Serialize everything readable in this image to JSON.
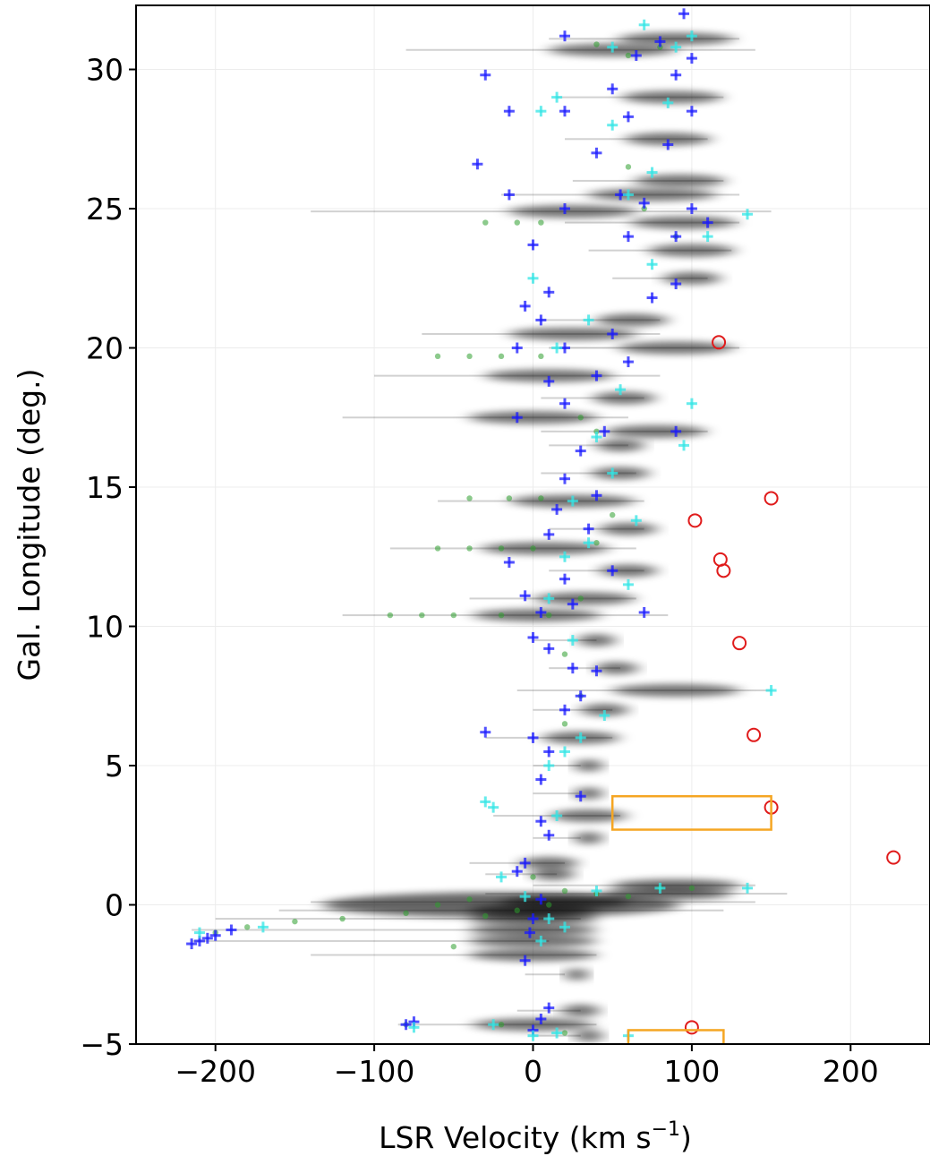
{
  "chart_data": {
    "type": "scatter",
    "title": "",
    "xlabel": "LSR Velocity (km s",
    "xlabel_sup": "−1",
    "xlabel_end": ")",
    "ylabel": "Gal. Longitude (deg.)",
    "xlim": [
      -250,
      250
    ],
    "ylim": [
      -5,
      32.3
    ],
    "x_ticks": [
      -200,
      -100,
      0,
      100,
      200
    ],
    "x_tick_labels": [
      "−200",
      "−100",
      "0",
      "100",
      "200"
    ],
    "y_ticks": [
      -5,
      0,
      5,
      10,
      15,
      20,
      25,
      30
    ],
    "y_tick_labels": [
      "−5",
      "0",
      "5",
      "10",
      "15",
      "20",
      "25",
      "30"
    ],
    "grid": true,
    "colors": {
      "emission": "#000000",
      "green_points": "#2e9e2e",
      "blue_cross": "#1a1aff",
      "cyan_cross": "#33e6e6",
      "red_circle": "#e01b1b",
      "orange_box": "#f5a623"
    },
    "emission_ridges": [
      {
        "l": 31.1,
        "v0": 10,
        "v1": 130
      },
      {
        "l": 30.7,
        "v0": -80,
        "v1": 140
      },
      {
        "l": 29.0,
        "v0": 15,
        "v1": 120
      },
      {
        "l": 27.5,
        "v0": 20,
        "v1": 110
      },
      {
        "l": 26.0,
        "v0": 25,
        "v1": 120
      },
      {
        "l": 25.5,
        "v0": -20,
        "v1": 130
      },
      {
        "l": 24.9,
        "v0": -140,
        "v1": 150
      },
      {
        "l": 24.5,
        "v0": 20,
        "v1": 130
      },
      {
        "l": 23.5,
        "v0": 35,
        "v1": 125
      },
      {
        "l": 22.5,
        "v0": 50,
        "v1": 110
      },
      {
        "l": 21.0,
        "v0": 5,
        "v1": 80
      },
      {
        "l": 20.5,
        "v0": -70,
        "v1": 80
      },
      {
        "l": 20.0,
        "v0": 10,
        "v1": 130
      },
      {
        "l": 19.0,
        "v0": -100,
        "v1": 80
      },
      {
        "l": 18.2,
        "v0": 5,
        "v1": 70
      },
      {
        "l": 17.5,
        "v0": -120,
        "v1": 60
      },
      {
        "l": 17.0,
        "v0": 5,
        "v1": 110
      },
      {
        "l": 16.5,
        "v0": 10,
        "v1": 60
      },
      {
        "l": 15.5,
        "v0": 5,
        "v1": 65
      },
      {
        "l": 14.5,
        "v0": -60,
        "v1": 70
      },
      {
        "l": 13.5,
        "v0": 10,
        "v1": 70
      },
      {
        "l": 12.8,
        "v0": -90,
        "v1": 65
      },
      {
        "l": 12.0,
        "v0": 10,
        "v1": 70
      },
      {
        "l": 11.0,
        "v0": -40,
        "v1": 65
      },
      {
        "l": 10.4,
        "v0": -120,
        "v1": 85
      },
      {
        "l": 9.5,
        "v0": 0,
        "v1": 40
      },
      {
        "l": 8.5,
        "v0": 10,
        "v1": 55
      },
      {
        "l": 7.7,
        "v0": -10,
        "v1": 150
      },
      {
        "l": 7.0,
        "v0": 0,
        "v1": 50
      },
      {
        "l": 6.0,
        "v0": -30,
        "v1": 50
      },
      {
        "l": 5.0,
        "v0": 0,
        "v1": 30
      },
      {
        "l": 4.0,
        "v0": 0,
        "v1": 30
      },
      {
        "l": 3.2,
        "v0": -25,
        "v1": 55
      },
      {
        "l": 2.4,
        "v0": 0,
        "v1": 30
      },
      {
        "l": 1.5,
        "v0": -40,
        "v1": 20
      },
      {
        "l": 1.1,
        "v0": -30,
        "v1": 15
      },
      {
        "l": 0.7,
        "v0": 0,
        "v1": 140
      },
      {
        "l": 0.4,
        "v0": -30,
        "v1": 160
      },
      {
        "l": 0.1,
        "v0": -140,
        "v1": 140
      },
      {
        "l": -0.2,
        "v0": -160,
        "v1": 120
      },
      {
        "l": -0.5,
        "v0": -200,
        "v1": 30
      },
      {
        "l": -0.9,
        "v0": -215,
        "v1": 20
      },
      {
        "l": -1.3,
        "v0": -215,
        "v1": 10
      },
      {
        "l": -1.8,
        "v0": -140,
        "v1": 40
      },
      {
        "l": -2.5,
        "v0": -5,
        "v1": 20
      },
      {
        "l": -3.8,
        "v0": -10,
        "v1": 30
      },
      {
        "l": -4.3,
        "v0": -85,
        "v1": 40
      },
      {
        "l": -4.7,
        "v0": 0,
        "v1": 30
      }
    ],
    "series": [
      {
        "marker": "green-dot",
        "points": [
          [
            -60,
            0.0
          ],
          [
            -40,
            0.2
          ],
          [
            -80,
            -0.3
          ],
          [
            -120,
            -0.5
          ],
          [
            -150,
            -0.6
          ],
          [
            -180,
            -0.8
          ],
          [
            -200,
            -1.0
          ],
          [
            20,
            0.5
          ],
          [
            40,
            0.4
          ],
          [
            60,
            0.3
          ],
          [
            80,
            0.6
          ],
          [
            100,
            0.6
          ],
          [
            10,
            10.4
          ],
          [
            -20,
            10.4
          ],
          [
            -50,
            10.4
          ],
          [
            -70,
            10.4
          ],
          [
            -90,
            10.4
          ],
          [
            0,
            12.8
          ],
          [
            -20,
            12.8
          ],
          [
            -40,
            12.8
          ],
          [
            -60,
            12.8
          ],
          [
            5,
            14.6
          ],
          [
            -15,
            14.6
          ],
          [
            -40,
            14.6
          ],
          [
            5,
            19.7
          ],
          [
            -20,
            19.7
          ],
          [
            -40,
            19.7
          ],
          [
            -60,
            19.7
          ],
          [
            5,
            24.5
          ],
          [
            -10,
            24.5
          ],
          [
            -30,
            24.5
          ],
          [
            40,
            30.9
          ],
          [
            60,
            30.5
          ],
          [
            80,
            30.8
          ],
          [
            70,
            25.0
          ],
          [
            90,
            24.0
          ],
          [
            60,
            26.5
          ],
          [
            30,
            17.5
          ],
          [
            40,
            17.0
          ],
          [
            50,
            14.0
          ],
          [
            40,
            13.0
          ],
          [
            30,
            11.0
          ],
          [
            20,
            9.0
          ],
          [
            30,
            7.5
          ],
          [
            20,
            6.5
          ],
          [
            0,
            1.0
          ],
          [
            10,
            0.0
          ],
          [
            -10,
            -0.2
          ],
          [
            -30,
            -0.4
          ],
          [
            -50,
            -1.5
          ],
          [
            -80,
            -4.3
          ],
          [
            -20,
            -4.3
          ],
          [
            20,
            -4.6
          ]
        ]
      },
      {
        "marker": "blue-cross",
        "points": [
          [
            -210,
            -1.3
          ],
          [
            -205,
            -1.2
          ],
          [
            -215,
            -1.4
          ],
          [
            -200,
            -1.1
          ],
          [
            -190,
            -0.9
          ],
          [
            -80,
            -4.3
          ],
          [
            -75,
            -4.2
          ],
          [
            0,
            -4.5
          ],
          [
            5,
            -4.1
          ],
          [
            10,
            -3.7
          ],
          [
            -5,
            -2.0
          ],
          [
            -2,
            -1.0
          ],
          [
            0,
            -0.5
          ],
          [
            5,
            0.2
          ],
          [
            -10,
            1.2
          ],
          [
            -5,
            1.5
          ],
          [
            10,
            2.5
          ],
          [
            5,
            3.0
          ],
          [
            30,
            3.9
          ],
          [
            5,
            4.5
          ],
          [
            10,
            5.5
          ],
          [
            0,
            6.0
          ],
          [
            -30,
            6.2
          ],
          [
            20,
            7.0
          ],
          [
            30,
            7.5
          ],
          [
            25,
            8.5
          ],
          [
            40,
            8.4
          ],
          [
            10,
            9.2
          ],
          [
            0,
            9.6
          ],
          [
            5,
            10.5
          ],
          [
            25,
            10.8
          ],
          [
            70,
            10.5
          ],
          [
            -5,
            11.1
          ],
          [
            20,
            11.7
          ],
          [
            50,
            12.0
          ],
          [
            -15,
            12.3
          ],
          [
            10,
            13.3
          ],
          [
            35,
            13.5
          ],
          [
            15,
            14.2
          ],
          [
            40,
            14.7
          ],
          [
            20,
            15.3
          ],
          [
            30,
            16.3
          ],
          [
            45,
            17.0
          ],
          [
            -10,
            17.5
          ],
          [
            90,
            17.0
          ],
          [
            20,
            18.0
          ],
          [
            10,
            18.8
          ],
          [
            40,
            19.0
          ],
          [
            60,
            19.5
          ],
          [
            20,
            20.0
          ],
          [
            -10,
            20.0
          ],
          [
            50,
            20.5
          ],
          [
            5,
            21.0
          ],
          [
            -5,
            21.5
          ],
          [
            75,
            21.8
          ],
          [
            10,
            22.0
          ],
          [
            90,
            22.3
          ],
          [
            0,
            23.7
          ],
          [
            60,
            24.0
          ],
          [
            90,
            24.0
          ],
          [
            110,
            24.5
          ],
          [
            20,
            25.0
          ],
          [
            70,
            25.2
          ],
          [
            100,
            25.0
          ],
          [
            -15,
            25.5
          ],
          [
            55,
            25.5
          ],
          [
            -35,
            26.6
          ],
          [
            40,
            27.0
          ],
          [
            85,
            27.3
          ],
          [
            20,
            28.5
          ],
          [
            60,
            28.3
          ],
          [
            100,
            28.5
          ],
          [
            -15,
            28.5
          ],
          [
            50,
            29.3
          ],
          [
            90,
            29.8
          ],
          [
            -30,
            29.8
          ],
          [
            65,
            30.5
          ],
          [
            100,
            30.4
          ],
          [
            20,
            31.2
          ],
          [
            80,
            31.0
          ],
          [
            95,
            32.0
          ]
        ]
      },
      {
        "marker": "cyan-cross",
        "points": [
          [
            -210,
            -1.0
          ],
          [
            -170,
            -0.8
          ],
          [
            -75,
            -4.4
          ],
          [
            -25,
            -4.3
          ],
          [
            -30,
            3.7
          ],
          [
            -25,
            3.5
          ],
          [
            5,
            -1.3
          ],
          [
            10,
            -0.5
          ],
          [
            -5,
            0.3
          ],
          [
            20,
            -0.8
          ],
          [
            15,
            -4.6
          ],
          [
            0,
            -4.7
          ],
          [
            60,
            -4.7
          ],
          [
            40,
            0.5
          ],
          [
            80,
            0.6
          ],
          [
            135,
            0.6
          ],
          [
            -20,
            1.0
          ],
          [
            15,
            3.2
          ],
          [
            10,
            5.0
          ],
          [
            20,
            5.5
          ],
          [
            30,
            6.0
          ],
          [
            45,
            6.8
          ],
          [
            150,
            7.7
          ],
          [
            25,
            9.5
          ],
          [
            10,
            11.0
          ],
          [
            60,
            11.5
          ],
          [
            20,
            12.5
          ],
          [
            35,
            13.0
          ],
          [
            25,
            14.5
          ],
          [
            50,
            15.5
          ],
          [
            95,
            16.5
          ],
          [
            40,
            16.8
          ],
          [
            100,
            18.0
          ],
          [
            55,
            18.5
          ],
          [
            15,
            20.0
          ],
          [
            35,
            21.0
          ],
          [
            75,
            23.0
          ],
          [
            110,
            24.0
          ],
          [
            135,
            24.8
          ],
          [
            60,
            25.5
          ],
          [
            75,
            26.3
          ],
          [
            5,
            28.5
          ],
          [
            50,
            28.0
          ],
          [
            85,
            28.8
          ],
          [
            15,
            29.0
          ],
          [
            50,
            30.8
          ],
          [
            90,
            30.8
          ],
          [
            70,
            31.6
          ],
          [
            100,
            31.2
          ],
          [
            0,
            22.5
          ],
          [
            65,
            13.8
          ]
        ]
      },
      {
        "marker": "red-circle",
        "points": [
          [
            117,
            20.2
          ],
          [
            150,
            14.6
          ],
          [
            102,
            13.8
          ],
          [
            118,
            12.4
          ],
          [
            120,
            12.0
          ],
          [
            130,
            9.4
          ],
          [
            139,
            6.1
          ],
          [
            150,
            3.5
          ],
          [
            227,
            1.7
          ],
          [
            100,
            -4.4
          ]
        ]
      }
    ],
    "boxes": [
      {
        "v0": 50,
        "v1": 150,
        "l0": 2.7,
        "l1": 3.9
      },
      {
        "v0": 60,
        "v1": 120,
        "l0": -5.3,
        "l1": -4.5
      }
    ]
  }
}
